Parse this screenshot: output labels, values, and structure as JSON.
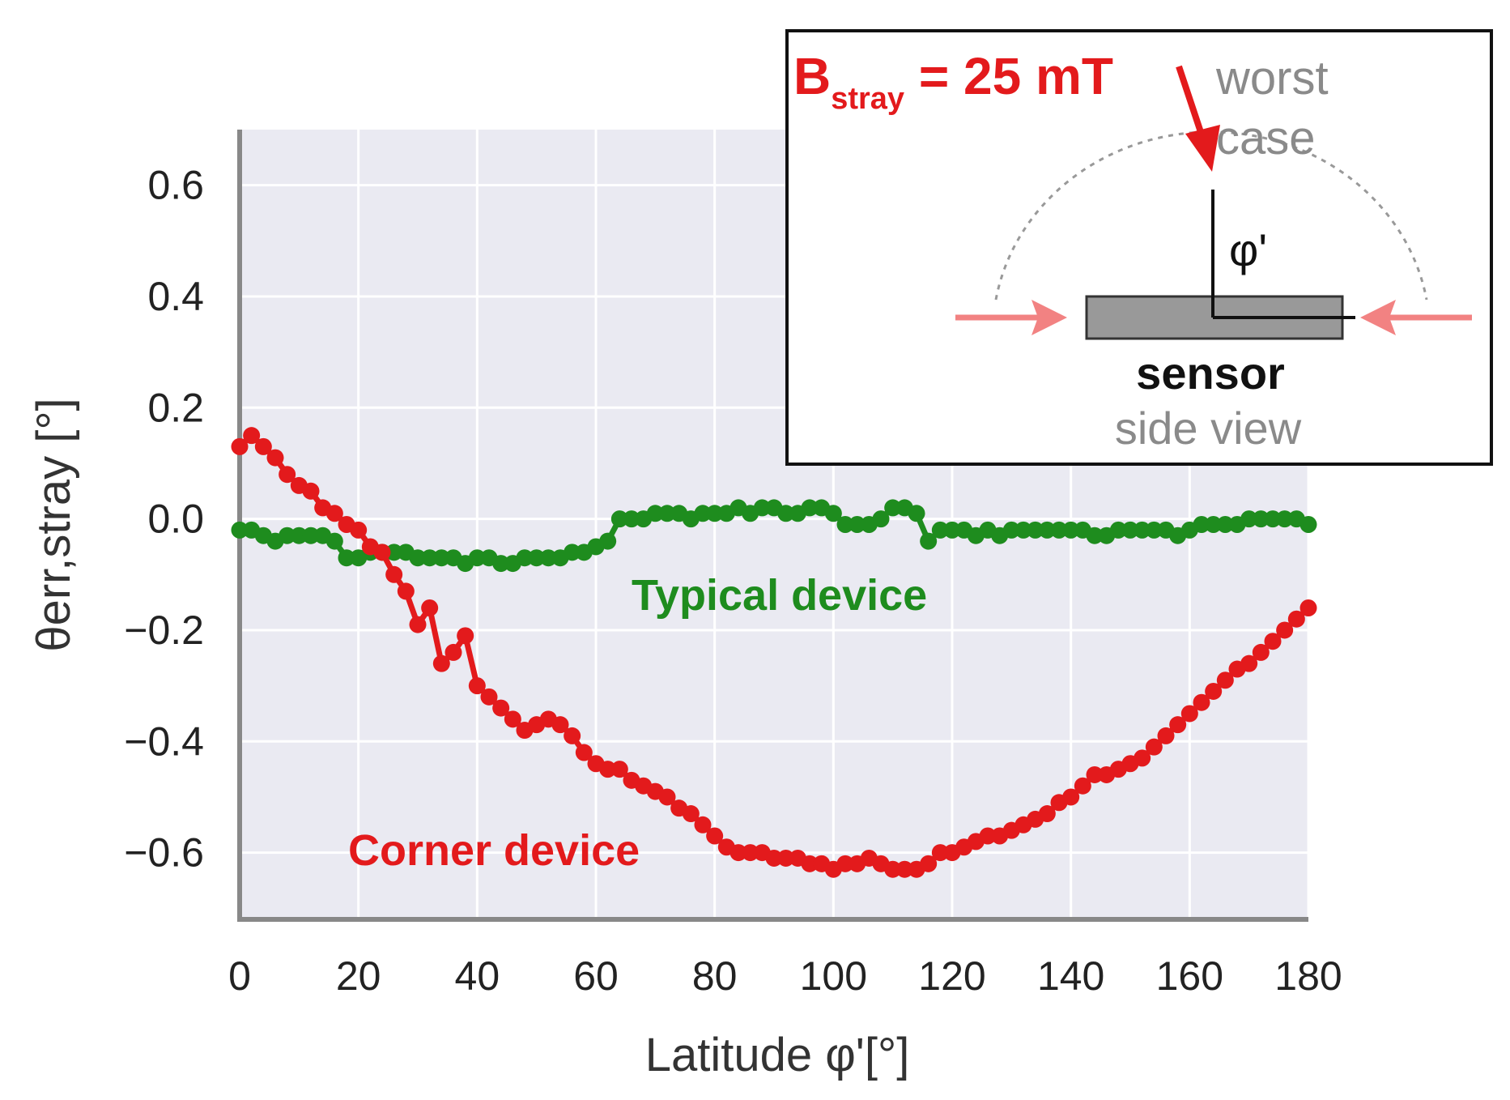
{
  "chart_data": {
    "type": "scatter",
    "xlabel": "Latitude φ'[°]",
    "ylabel": "θerr,stray [°]",
    "xlim": [
      0,
      180
    ],
    "ylim": [
      -0.72,
      0.7
    ],
    "xticks": [
      "0",
      "20",
      "40",
      "60",
      "80",
      "100",
      "120",
      "140",
      "160",
      "180"
    ],
    "yticks": [
      "0.6",
      "0.4",
      "0.2",
      "0.0",
      "−0.2",
      "−0.4",
      "−0.6"
    ],
    "grid": true,
    "series": [
      {
        "name": "Typical device",
        "color": "#1e8c1e",
        "x": [
          0,
          2,
          4,
          6,
          8,
          10,
          12,
          14,
          16,
          18,
          20,
          22,
          24,
          26,
          28,
          30,
          32,
          34,
          36,
          38,
          40,
          42,
          44,
          46,
          48,
          50,
          52,
          54,
          56,
          58,
          60,
          62,
          64,
          66,
          68,
          70,
          72,
          74,
          76,
          78,
          80,
          82,
          84,
          86,
          88,
          90,
          92,
          94,
          96,
          98,
          100,
          102,
          104,
          106,
          108,
          110,
          112,
          114,
          116,
          118,
          120,
          122,
          124,
          126,
          128,
          130,
          132,
          134,
          136,
          138,
          140,
          142,
          144,
          146,
          148,
          150,
          152,
          154,
          156,
          158,
          160,
          162,
          164,
          166,
          168,
          170,
          172,
          174,
          176,
          178,
          180
        ],
        "y": [
          -0.02,
          -0.02,
          -0.03,
          -0.04,
          -0.03,
          -0.03,
          -0.03,
          -0.03,
          -0.04,
          -0.07,
          -0.07,
          -0.06,
          -0.06,
          -0.06,
          -0.06,
          -0.07,
          -0.07,
          -0.07,
          -0.07,
          -0.08,
          -0.07,
          -0.07,
          -0.08,
          -0.08,
          -0.07,
          -0.07,
          -0.07,
          -0.07,
          -0.06,
          -0.06,
          -0.05,
          -0.04,
          0.0,
          0.0,
          0.0,
          0.01,
          0.01,
          0.01,
          0.0,
          0.01,
          0.01,
          0.01,
          0.02,
          0.01,
          0.02,
          0.02,
          0.01,
          0.01,
          0.02,
          0.02,
          0.01,
          -0.01,
          -0.01,
          -0.01,
          0.0,
          0.02,
          0.02,
          0.01,
          -0.04,
          -0.02,
          -0.02,
          -0.02,
          -0.03,
          -0.02,
          -0.03,
          -0.02,
          -0.02,
          -0.02,
          -0.02,
          -0.02,
          -0.02,
          -0.02,
          -0.03,
          -0.03,
          -0.02,
          -0.02,
          -0.02,
          -0.02,
          -0.02,
          -0.03,
          -0.02,
          -0.01,
          -0.01,
          -0.01,
          -0.01,
          0.0,
          0.0,
          0.0,
          0.0,
          0.0,
          -0.01
        ]
      },
      {
        "name": "Corner device",
        "color": "#e31a1c",
        "x": [
          0,
          2,
          4,
          6,
          8,
          10,
          12,
          14,
          16,
          18,
          20,
          22,
          24,
          26,
          28,
          30,
          32,
          34,
          36,
          38,
          40,
          42,
          44,
          46,
          48,
          50,
          52,
          54,
          56,
          58,
          60,
          62,
          64,
          66,
          68,
          70,
          72,
          74,
          76,
          78,
          80,
          82,
          84,
          86,
          88,
          90,
          92,
          94,
          96,
          98,
          100,
          102,
          104,
          106,
          108,
          110,
          112,
          114,
          116,
          118,
          120,
          122,
          124,
          126,
          128,
          130,
          132,
          134,
          136,
          138,
          140,
          142,
          144,
          146,
          148,
          150,
          152,
          154,
          156,
          158,
          160,
          162,
          164,
          166,
          168,
          170,
          172,
          174,
          176,
          178,
          180
        ],
        "y": [
          0.13,
          0.15,
          0.13,
          0.11,
          0.08,
          0.06,
          0.05,
          0.02,
          0.01,
          -0.01,
          -0.02,
          -0.05,
          -0.06,
          -0.1,
          -0.13,
          -0.19,
          -0.16,
          -0.26,
          -0.24,
          -0.21,
          -0.3,
          -0.32,
          -0.34,
          -0.36,
          -0.38,
          -0.37,
          -0.36,
          -0.37,
          -0.39,
          -0.42,
          -0.44,
          -0.45,
          -0.45,
          -0.47,
          -0.48,
          -0.49,
          -0.5,
          -0.52,
          -0.53,
          -0.55,
          -0.57,
          -0.59,
          -0.6,
          -0.6,
          -0.6,
          -0.61,
          -0.61,
          -0.61,
          -0.62,
          -0.62,
          -0.63,
          -0.62,
          -0.62,
          -0.61,
          -0.62,
          -0.63,
          -0.63,
          -0.63,
          -0.62,
          -0.6,
          -0.6,
          -0.59,
          -0.58,
          -0.57,
          -0.57,
          -0.56,
          -0.55,
          -0.54,
          -0.53,
          -0.51,
          -0.5,
          -0.48,
          -0.46,
          -0.46,
          -0.45,
          -0.44,
          -0.43,
          -0.41,
          -0.39,
          -0.37,
          -0.35,
          -0.33,
          -0.31,
          -0.29,
          -0.27,
          -0.26,
          -0.24,
          -0.22,
          -0.2,
          -0.18,
          -0.16
        ]
      }
    ]
  },
  "inset": {
    "b_symbol": "B",
    "b_subscript": "stray",
    "b_value": " = 25 mT",
    "worst_line1": "worst",
    "worst_line2": "case",
    "angle_label": "φ'",
    "sensor_label": "sensor",
    "view_label": "side view"
  }
}
